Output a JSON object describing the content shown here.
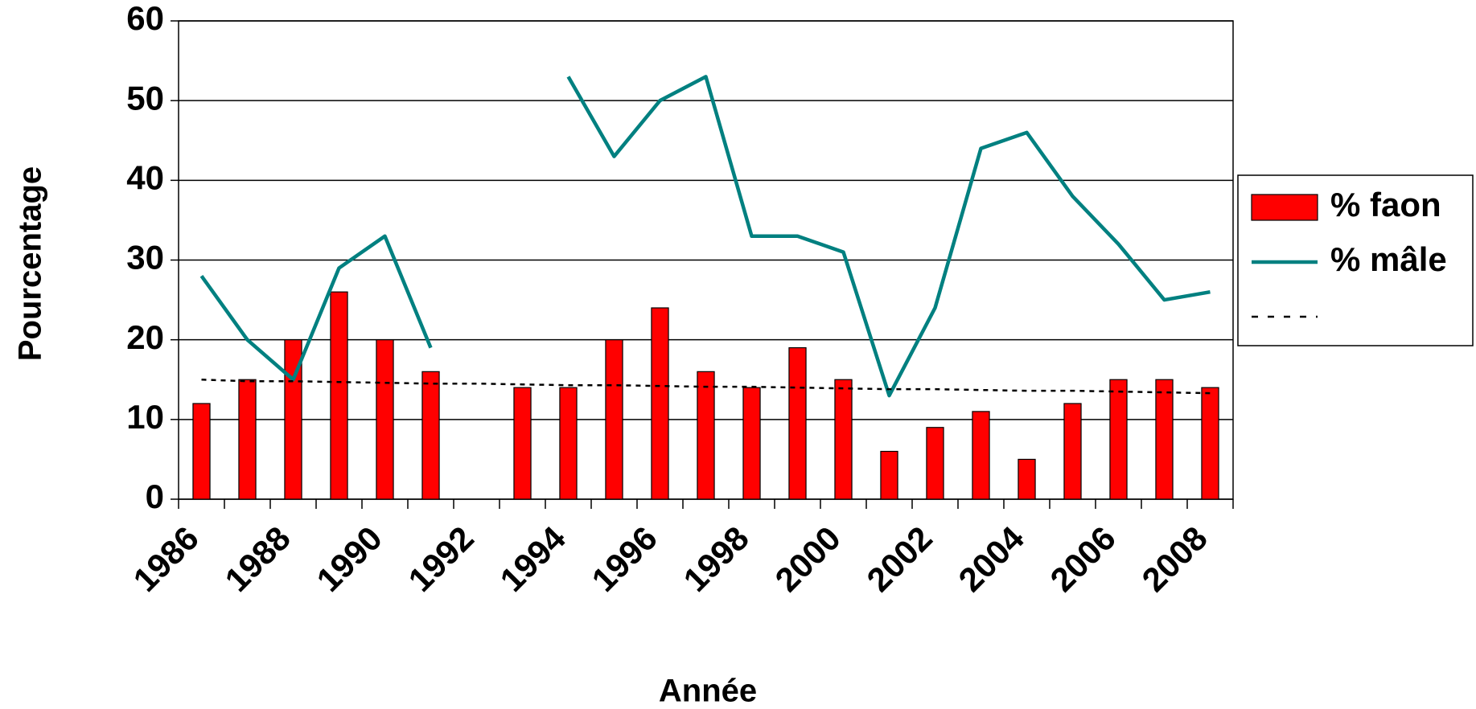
{
  "chart_data": {
    "type": "bar",
    "x_label": "Année",
    "y_label": "Pourcentage",
    "categories": [
      "1986",
      null,
      "1988",
      null,
      "1990",
      null,
      "1992",
      null,
      "1994",
      null,
      "1996",
      null,
      "1998",
      null,
      "2000",
      null,
      "2002",
      null,
      "2004",
      null,
      "2006",
      null,
      "2008"
    ],
    "series": [
      {
        "name": "% faon",
        "type": "bar",
        "color": "#ff0000",
        "values": [
          12,
          15,
          20,
          26,
          20,
          16,
          null,
          14,
          14,
          20,
          24,
          16,
          14,
          19,
          15,
          6,
          9,
          11,
          5,
          12,
          15,
          15,
          14
        ]
      },
      {
        "name": "% mâle",
        "type": "line",
        "color": "#008080",
        "values": [
          28,
          20,
          15,
          29,
          33,
          19,
          null,
          null,
          53,
          43,
          50,
          53,
          33,
          33,
          31,
          13,
          24,
          44,
          46,
          38,
          32,
          25,
          26
        ]
      },
      {
        "type": "line",
        "color": "#000000",
        "linestyle": "dotted",
        "values": [
          15.0,
          14.8,
          14.8,
          14.7,
          14.6,
          14.5,
          14.5,
          14.4,
          14.3,
          14.3,
          14.2,
          14.1,
          14.1,
          14.0,
          13.9,
          13.8,
          13.8,
          13.7,
          13.6,
          13.6,
          13.5,
          13.4,
          13.3
        ]
      }
    ],
    "ylim": [
      0,
      60
    ],
    "yticks": [
      0,
      10,
      20,
      30,
      40,
      50,
      60
    ],
    "grid": true,
    "legend": "right"
  }
}
